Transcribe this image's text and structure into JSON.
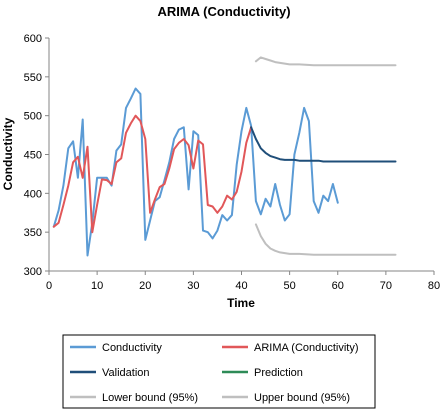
{
  "chart_data": {
    "type": "line",
    "title": "ARIMA (Conductivity)",
    "xlabel": "Time",
    "ylabel": "Conductivity",
    "xlim": [
      0,
      80
    ],
    "ylim": [
      300,
      600
    ],
    "xticks": [
      0,
      10,
      20,
      30,
      40,
      50,
      60,
      70,
      80
    ],
    "yticks": [
      300,
      350,
      400,
      450,
      500,
      550,
      600
    ],
    "grid": false,
    "legend_position": "bottom",
    "series": [
      {
        "name": "Conductivity",
        "color": "#5b9bd5",
        "x": [
          1,
          2,
          3,
          4,
          5,
          6,
          7,
          8,
          9,
          10,
          11,
          12,
          13,
          14,
          15,
          16,
          17,
          18,
          19,
          20,
          21,
          22,
          23,
          24,
          25,
          26,
          27,
          28,
          29,
          30,
          31,
          32,
          33,
          34,
          35,
          36,
          37,
          38,
          39,
          40,
          41,
          42,
          43,
          44,
          45,
          46,
          47,
          48,
          49,
          50,
          51,
          52,
          53,
          54,
          55,
          56,
          57,
          58,
          59,
          60
        ],
        "values": [
          357,
          378,
          410,
          458,
          467,
          420,
          495,
          320,
          362,
          420,
          420,
          420,
          410,
          455,
          463,
          510,
          522,
          535,
          528,
          340,
          365,
          390,
          395,
          417,
          440,
          470,
          482,
          485,
          405,
          480,
          475,
          352,
          350,
          342,
          352,
          372,
          365,
          372,
          437,
          480,
          510,
          487,
          390,
          373,
          393,
          383,
          412,
          385,
          365,
          373,
          450,
          478,
          510,
          493,
          390,
          375,
          397,
          390,
          412,
          388
        ]
      },
      {
        "name": "ARIMA (Conductivity)",
        "color": "#e15759",
        "x": [
          1,
          2,
          3,
          4,
          5,
          6,
          7,
          8,
          9,
          10,
          11,
          12,
          13,
          14,
          15,
          16,
          17,
          18,
          19,
          20,
          21,
          22,
          23,
          24,
          25,
          26,
          27,
          28,
          29,
          30,
          31,
          32,
          33,
          34,
          35,
          36,
          37,
          38,
          39,
          40,
          41,
          42
        ],
        "values": [
          357,
          362,
          385,
          410,
          440,
          447,
          420,
          460,
          350,
          385,
          418,
          417,
          412,
          440,
          445,
          478,
          490,
          500,
          493,
          470,
          375,
          392,
          408,
          412,
          432,
          457,
          465,
          470,
          462,
          432,
          468,
          463,
          385,
          383,
          375,
          383,
          397,
          392,
          402,
          428,
          465,
          485
        ]
      },
      {
        "name": "Validation",
        "color": "#1f4e79",
        "x": [
          42,
          43,
          44,
          45,
          46,
          47,
          48,
          49,
          50,
          51,
          52,
          53,
          54,
          55,
          56,
          57,
          58,
          59,
          60,
          61,
          62,
          63,
          64,
          65,
          66,
          67,
          68,
          69,
          70,
          71,
          72
        ],
        "values": [
          485,
          470,
          458,
          452,
          448,
          446,
          444,
          443,
          443,
          443,
          442,
          442,
          442,
          442,
          442,
          441,
          441,
          441,
          441,
          441,
          441,
          441,
          441,
          441,
          441,
          441,
          441,
          441,
          441,
          441,
          441
        ]
      },
      {
        "name": "Prediction",
        "color": "#2e8b57",
        "x": [],
        "values": []
      },
      {
        "name": "Lower bound (95%)",
        "color": "#bfbfbf",
        "x": [
          43,
          44,
          45,
          46,
          47,
          48,
          49,
          50,
          52,
          55,
          60,
          65,
          72
        ],
        "values": [
          360,
          345,
          335,
          329,
          326,
          324,
          323,
          322,
          322,
          321,
          321,
          321,
          321
        ]
      },
      {
        "name": "Upper bound (95%)",
        "color": "#bfbfbf",
        "x": [
          43,
          44,
          45,
          46,
          47,
          48,
          49,
          50,
          52,
          55,
          60,
          65,
          72
        ],
        "values": [
          570,
          575,
          573,
          571,
          569,
          568,
          567,
          566,
          566,
          565,
          565,
          565,
          565
        ]
      }
    ]
  }
}
